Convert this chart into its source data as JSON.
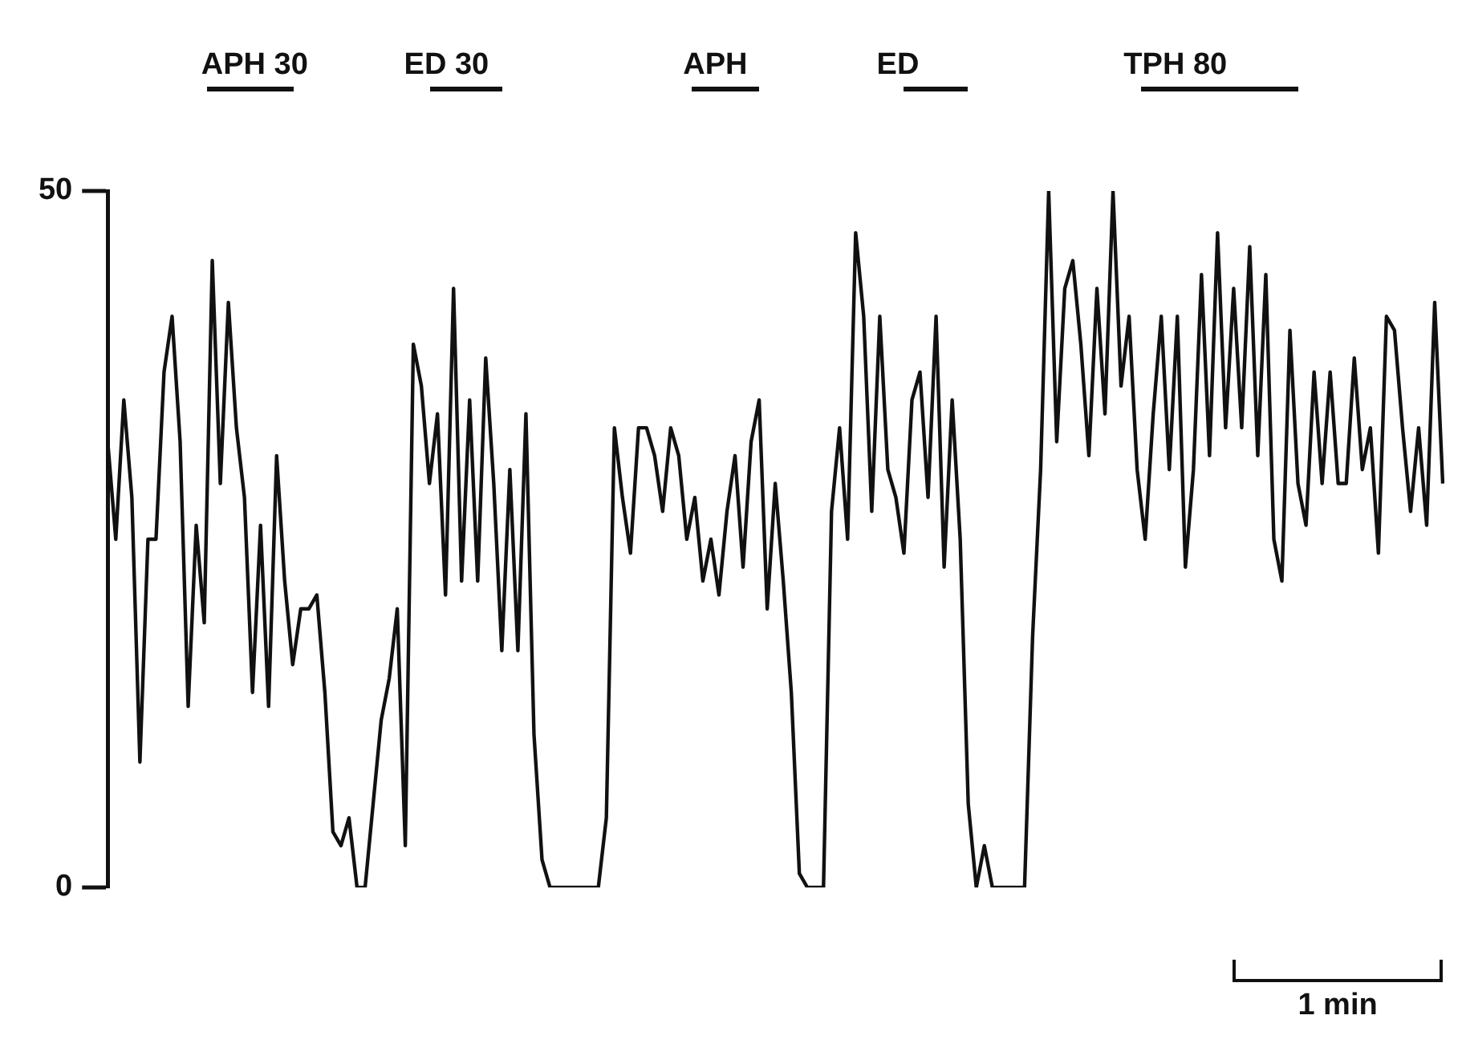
{
  "chart_data": {
    "type": "line",
    "categories": [
      null,
      null,
      null,
      null,
      null,
      null,
      null,
      null,
      null,
      null,
      null,
      null,
      null,
      null,
      null,
      null,
      null,
      null,
      null,
      null,
      null,
      null,
      null,
      null,
      null,
      null,
      null,
      null,
      null,
      null,
      null,
      null,
      null,
      null,
      null,
      null,
      null,
      null,
      null,
      null,
      null,
      null,
      null,
      null,
      null,
      null,
      null,
      null,
      null,
      null,
      null,
      null,
      null,
      null,
      null,
      null,
      null,
      null,
      null,
      null,
      null,
      null,
      null,
      null,
      null,
      null,
      null,
      null,
      null,
      null,
      null,
      null,
      null,
      null,
      null,
      null,
      null,
      null,
      null,
      null,
      null,
      null,
      null,
      null,
      null,
      null,
      null,
      null,
      null,
      null,
      null,
      null,
      null,
      null,
      null,
      null,
      null,
      null,
      null,
      null,
      null,
      null,
      null,
      null,
      null,
      null,
      null,
      null,
      null,
      null,
      null,
      null,
      null,
      null,
      null,
      null,
      null,
      null,
      null,
      null,
      null,
      null,
      null,
      null,
      null,
      null,
      null,
      null,
      null,
      null,
      null,
      null,
      null,
      null,
      null,
      null,
      null,
      null,
      null,
      null,
      null,
      null,
      null,
      null,
      null,
      null,
      null,
      null,
      null,
      null,
      null,
      null,
      null,
      null,
      null,
      null,
      null,
      null,
      null,
      null,
      null,
      null,
      null,
      null,
      null,
      null,
      null
    ],
    "series": [
      {
        "color": "#111111",
        "values": [
          32,
          25,
          35,
          28,
          9,
          25,
          25,
          37,
          41,
          32,
          13,
          26,
          19,
          45,
          29,
          42,
          33,
          28,
          14,
          26,
          13,
          31,
          22,
          16,
          20,
          20,
          21,
          14,
          4,
          3,
          5,
          0,
          0,
          6,
          12,
          15,
          20,
          3,
          39,
          36,
          29,
          34,
          21,
          43,
          22,
          35,
          22,
          38,
          29,
          17,
          30,
          17,
          34,
          11,
          2,
          0,
          0,
          0,
          0,
          0,
          0,
          0,
          5,
          33,
          28,
          24,
          33,
          33,
          31,
          27,
          33,
          31,
          25,
          28,
          22,
          25,
          21,
          27,
          31,
          23,
          32,
          35,
          20,
          29,
          22,
          14,
          1,
          0,
          0,
          0,
          27,
          33,
          25,
          47,
          41,
          27,
          41,
          30,
          28,
          24,
          35,
          37,
          28,
          41,
          23,
          35,
          25,
          6,
          0,
          3,
          0,
          0,
          0,
          0,
          0,
          18,
          30,
          50,
          32,
          43,
          45,
          39,
          31,
          43,
          34,
          50,
          36,
          41,
          30,
          25,
          34,
          41,
          30,
          41,
          23,
          30,
          44,
          31,
          47,
          33,
          43,
          33,
          46,
          31,
          44,
          25,
          22,
          40,
          29,
          26,
          37,
          29,
          37,
          29,
          29,
          38,
          30,
          33,
          24,
          41,
          40,
          33,
          27,
          33,
          26,
          42,
          29
        ]
      }
    ],
    "ylim": [
      0,
      50
    ],
    "yticks": [
      0,
      50
    ],
    "tick_labels": "y",
    "grid": false,
    "marker": "none",
    "line_style": "solid",
    "annotations": [
      "APH 30",
      "ED 30",
      "APH",
      "ED",
      "TPH 80",
      "1 min"
    ]
  }
}
